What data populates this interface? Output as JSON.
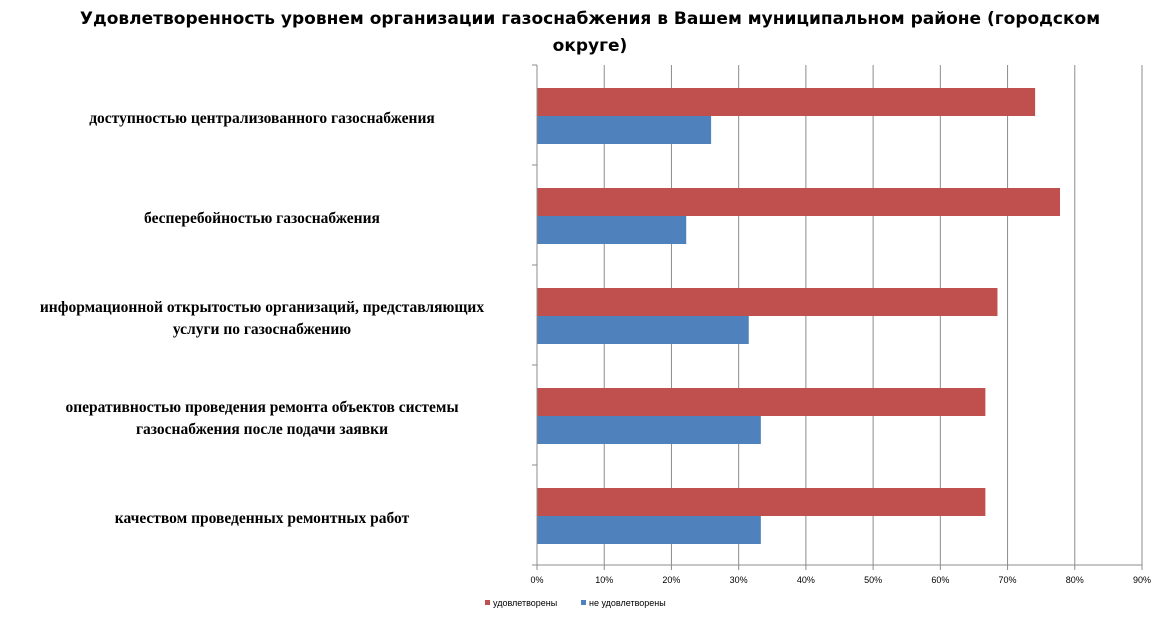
{
  "chart_data": {
    "type": "bar",
    "orientation": "horizontal",
    "title": "Удовлетворенность уровнем организации газоснабжения в Вашем муниципальном районе (городском округе)",
    "categories": [
      [
        "доступностью централизованного газоснабжения"
      ],
      [
        "бесперебойностью газоснабжения"
      ],
      [
        "информационной открытостью организаций, представляющих",
        "услуги по газоснабжению"
      ],
      [
        "оперативностью проведения ремонта объектов системы",
        "газоснабжения после подачи заявки"
      ],
      [
        "качеством проведенных ремонтных работ"
      ]
    ],
    "series": [
      {
        "name": "удовлетворены",
        "color": "#C0504D",
        "values": [
          74.1,
          77.8,
          68.5,
          66.7,
          66.7
        ]
      },
      {
        "name": "не удовлетворены",
        "color": "#4F81BD",
        "values": [
          25.9,
          22.2,
          31.5,
          33.3,
          33.3
        ]
      }
    ],
    "xlim": [
      0,
      90
    ],
    "xticks": [
      "0%",
      "10%",
      "20%",
      "30%",
      "40%",
      "50%",
      "60%",
      "70%",
      "80%",
      "90%"
    ],
    "grid": true,
    "legend": "bottom"
  }
}
